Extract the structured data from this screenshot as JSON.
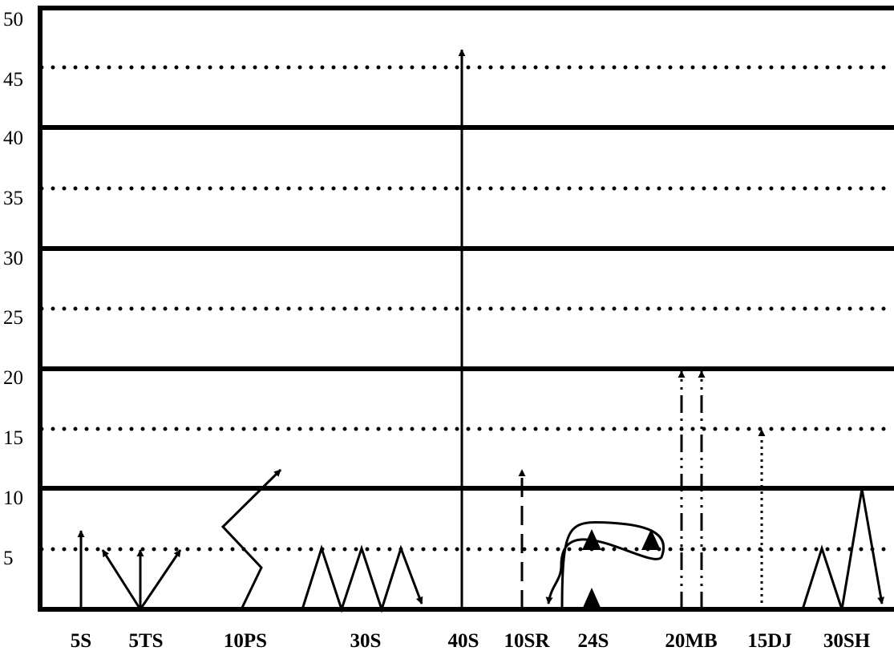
{
  "y_axis": {
    "min": 0,
    "max": 50,
    "ticks": [
      "50",
      "45",
      "40",
      "35",
      "30",
      "25",
      "20",
      "15",
      "10",
      "5"
    ]
  },
  "routes": [
    "5S",
    "5TS",
    "10PS",
    "30S",
    "40S",
    "10SR",
    "24S",
    "20MB",
    "15DJ",
    "30SH"
  ],
  "colors": {
    "ink": "#000000",
    "background": "#ffffff"
  }
}
